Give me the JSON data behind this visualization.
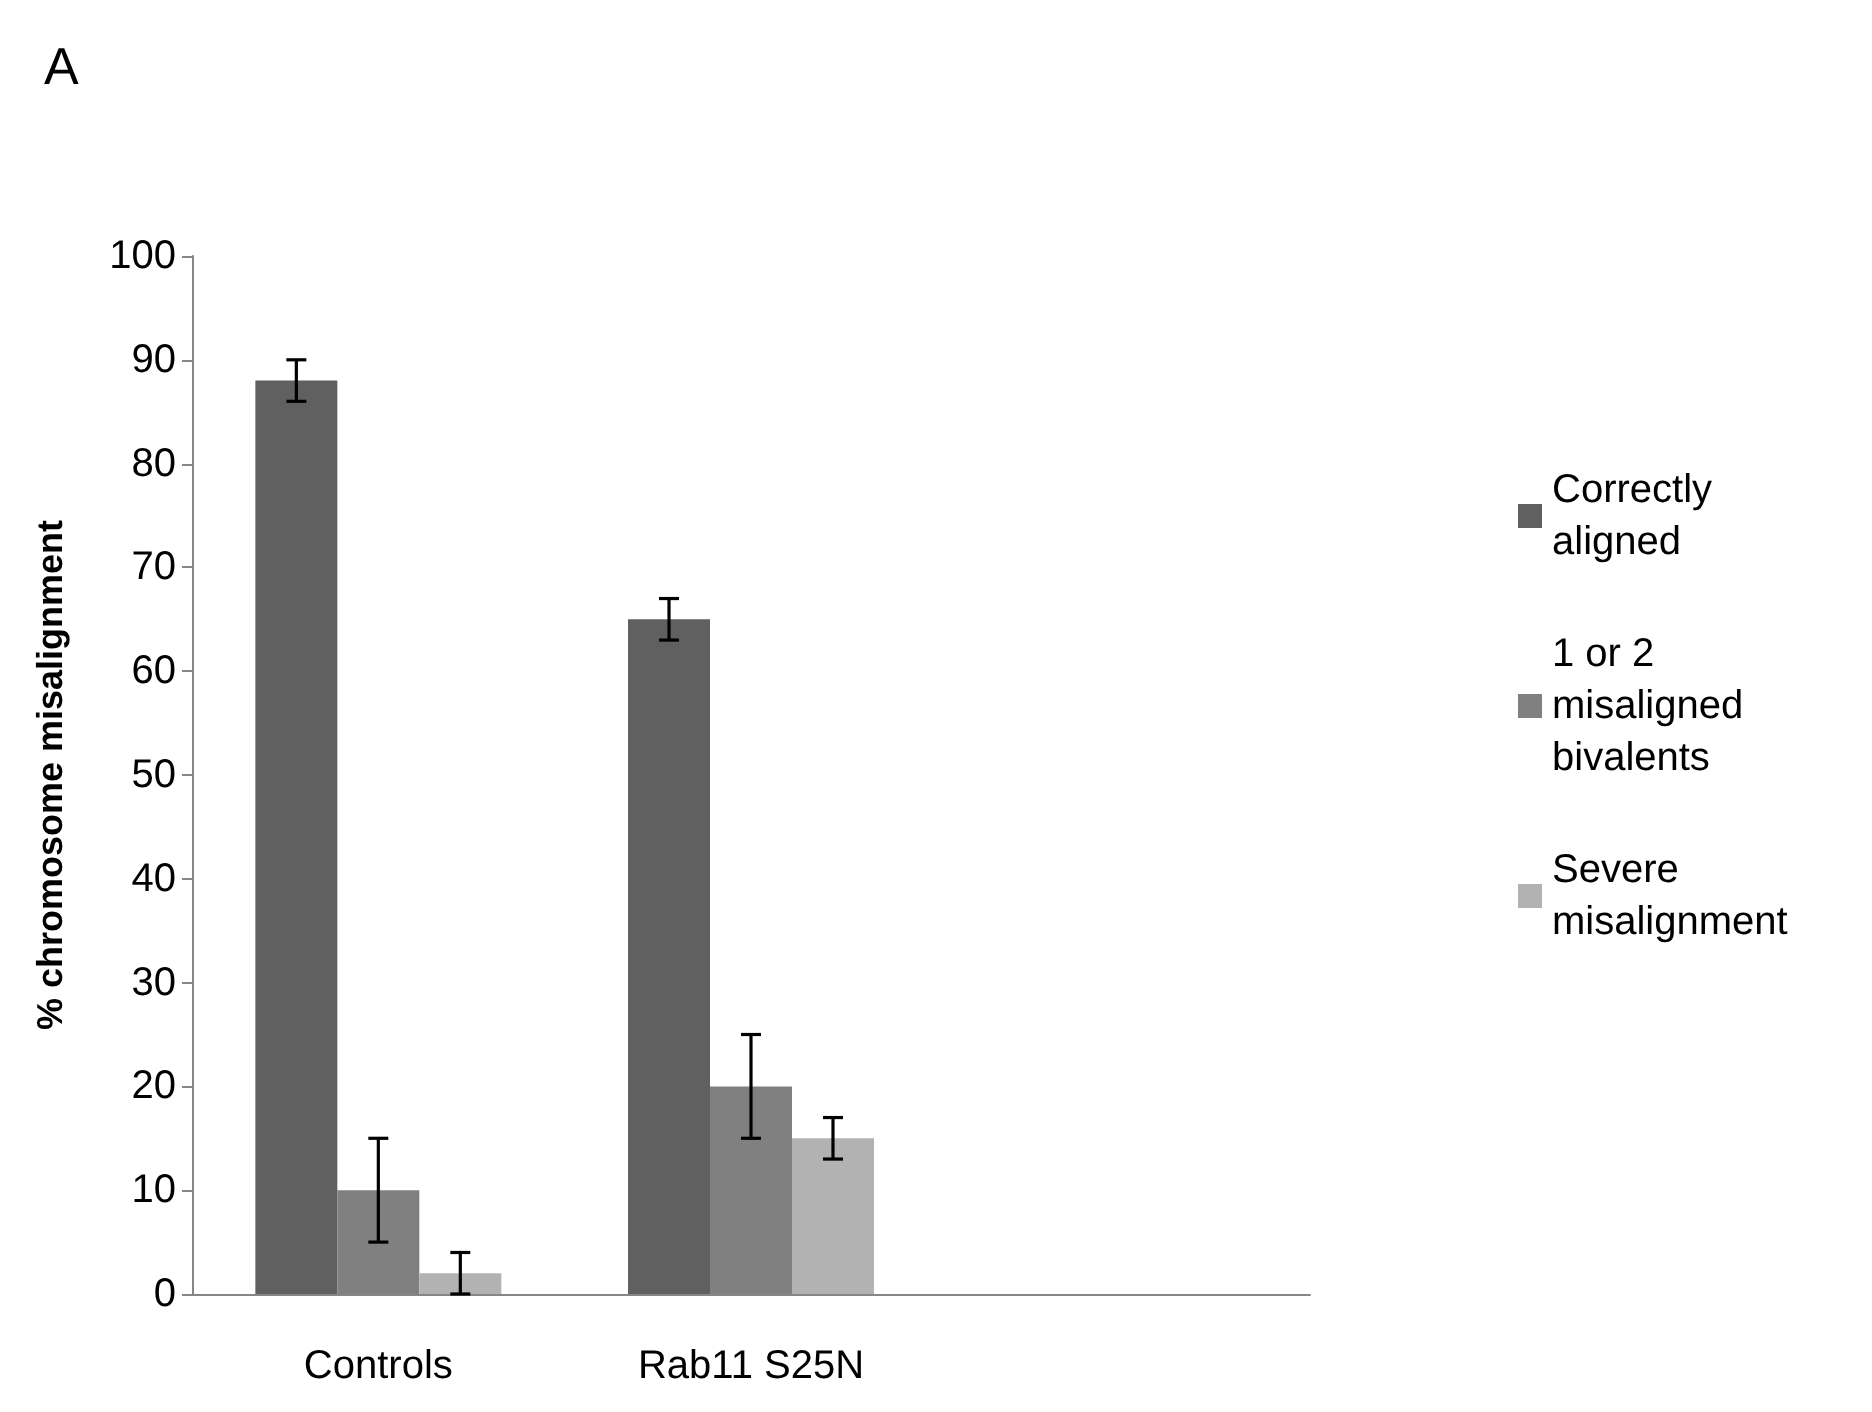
{
  "chart_data": {
    "type": "bar",
    "ylabel": "% chromosome misalignment",
    "categories": [
      "Controls",
      "Rab11 S25N",
      null
    ],
    "series": [
      {
        "name": "Correctly aligned",
        "color": "#606060",
        "values": [
          88,
          65,
          null
        ],
        "errors": [
          2,
          2,
          null
        ]
      },
      {
        "name": "1 or 2 misaligned bivalents",
        "color": "#808080",
        "values": [
          10,
          20,
          null
        ],
        "errors": [
          5,
          5,
          null
        ]
      },
      {
        "name": "Severe misalignment",
        "color": "#b2b2b2",
        "values": [
          2,
          15,
          null
        ],
        "errors": [
          2,
          2,
          null
        ]
      }
    ],
    "ylim": [
      0,
      100
    ],
    "yticks": [
      0,
      10,
      20,
      30,
      40,
      50,
      60,
      70,
      80,
      90,
      100
    ],
    "grid": false,
    "legend": "right",
    "annotations": [
      "A"
    ]
  }
}
